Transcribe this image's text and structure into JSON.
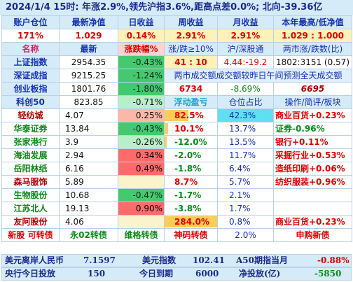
{
  "header": {
    "text": "2024/1/4   15时: 年涨2.9%,领先沪指3.6%,距高点差0.0%; 北向-39.36亿"
  },
  "summary": {
    "labels": [
      "账户仓位",
      "最新净值",
      "日收益",
      "周收益",
      "月收益",
      "本年最高/低净值"
    ],
    "values": [
      "171%",
      "1.029",
      "0.14%",
      "2.91%",
      "2.91%",
      "1.029 : 1.000"
    ]
  },
  "index_header": [
    "名称",
    "最新",
    "涨跌幅%",
    "涨/跌≥10%",
    "沪/深股通",
    "两市涨/跌数(比)"
  ],
  "indices": [
    {
      "name": "上证指数",
      "price": "2954.35",
      "pct": "-0.43%",
      "c4": "41 : 10",
      "c5": "4.44:-19.2",
      "c6": "1802:3151 (0.57)"
    },
    {
      "name": "深证成指",
      "price": "9215.25",
      "pct": "-1.24%",
      "merged": "两市成交额成交额较昨日午间预测全天成交额"
    },
    {
      "name": "创业板指",
      "price": "1801.76",
      "pct": "-1.80%",
      "c4": "6734",
      "c5": "-8.69%",
      "c6": "6695"
    },
    {
      "name": "科创50",
      "price": "823.85",
      "pct": "-0.71%",
      "c4": "浮动盈亏",
      "c5": "仓位占比",
      "c6": "操作/简评/板块"
    }
  ],
  "stocks": [
    {
      "name": "轻纺城",
      "price": "4.07",
      "pct": "0.25%",
      "pnl": "82.5%",
      "pnl_frac": 0.45,
      "pos": "42.3%",
      "note": "商业百货+0.23%"
    },
    {
      "name": "华泰证券",
      "price": "13.84",
      "pct": "-0.43%",
      "pnl": "10.1%",
      "pnl_frac": 0.06,
      "pos": "13.7%",
      "note": "证券-0.96%"
    },
    {
      "name": "张家港行",
      "price": "3.9",
      "pct": "-0.26%",
      "pnl": "-12.0%",
      "pnl_frac": 0.04,
      "pos": "13.5%",
      "note": "银行+0.11%"
    },
    {
      "name": "海油发展",
      "price": "2.94",
      "pct": "0.34%",
      "pnl": "-2.0%",
      "pnl_frac": 0,
      "pos": "11.7%",
      "note": "采掘行业+0.53%"
    },
    {
      "name": "岳阳林纸",
      "price": "6.16",
      "pct": "0.49%",
      "pnl": "-1.8%",
      "pnl_frac": 0,
      "pos": "6.4%",
      "note": "造纸印刷+0.06%"
    },
    {
      "name": "森马服饰",
      "price": "5.89",
      "pct": "",
      "pnl": "8.7%",
      "pnl_frac": 0,
      "pos": "5.7%",
      "note": "纺织服装+0.96%"
    },
    {
      "name": "生物股份",
      "price": "10.68",
      "pct": "-0.47%",
      "pnl": "-1.7%",
      "pnl_frac": 0,
      "pos": "2.1%",
      "note": ""
    },
    {
      "name": "江苏北人",
      "price": "19.13",
      "pct": "0.90%",
      "pnl": "-3.8%",
      "pnl_frac": 0,
      "pos": "1.7%",
      "note": ""
    },
    {
      "name": "友阿股份",
      "price": "4.06",
      "pct": "",
      "pnl": "284.0%",
      "pnl_frac": 1.0,
      "pos": "0.8%",
      "note": "商业百货+0.23%"
    }
  ],
  "bond_row": {
    "c1": "新股 可转债",
    "c2": "永02转债",
    "c3": "维格转债",
    "c4": "神码转债",
    "c5": "2.0%",
    "c6": "申购新债"
  },
  "bottom1": {
    "a": "美元离岸人民币",
    "b": "7.1597",
    "c": "美元指数",
    "d": "102.41",
    "e": "A50期指当月",
    "f": "-0.88%"
  },
  "bottom2": {
    "a": "央行今日投放",
    "b": "150",
    "c": "今日到期",
    "d": "6000",
    "e": "净投放(亿)",
    "f": "-5850"
  },
  "colors": {
    "header_bg": "#d5ebf7",
    "red": "#e00000",
    "green": "#0a8a1a",
    "blue": "#1530b8"
  }
}
